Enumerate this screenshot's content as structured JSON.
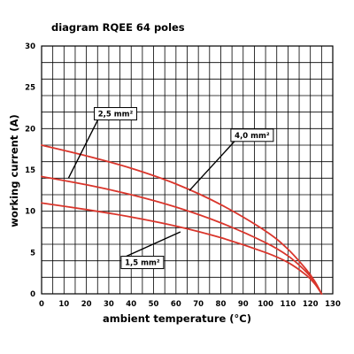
{
  "chart_data": {
    "type": "line",
    "title": "diagram RQEE 64 poles",
    "xlabel": "ambient temperature (°C)",
    "ylabel": "working current (A)",
    "xlim": [
      0,
      130
    ],
    "ylim": [
      0,
      30
    ],
    "x_ticks": [
      0,
      10,
      20,
      30,
      40,
      50,
      60,
      70,
      80,
      90,
      100,
      110,
      120,
      130
    ],
    "y_ticks": [
      0,
      5,
      10,
      15,
      20,
      25,
      30
    ],
    "grid": true,
    "grid_x_step": 5,
    "grid_y_step": 2,
    "line_color": "#d9352b",
    "series": [
      {
        "label": "4,0 mm²",
        "points": [
          [
            0,
            18.0
          ],
          [
            20,
            16.7
          ],
          [
            40,
            15.2
          ],
          [
            60,
            13.3
          ],
          [
            80,
            10.8
          ],
          [
            100,
            7.6
          ],
          [
            110,
            5.4
          ],
          [
            118,
            3.0
          ],
          [
            122,
            1.5
          ],
          [
            125,
            0.0
          ]
        ]
      },
      {
        "label": "2,5 mm²",
        "points": [
          [
            0,
            14.2
          ],
          [
            20,
            13.2
          ],
          [
            40,
            12.0
          ],
          [
            60,
            10.5
          ],
          [
            80,
            8.6
          ],
          [
            100,
            6.2
          ],
          [
            110,
            4.6
          ],
          [
            118,
            2.7
          ],
          [
            122,
            1.4
          ],
          [
            125,
            0.0
          ]
        ]
      },
      {
        "label": "1,5 mm²",
        "points": [
          [
            0,
            11.0
          ],
          [
            20,
            10.2
          ],
          [
            40,
            9.3
          ],
          [
            60,
            8.2
          ],
          [
            80,
            6.8
          ],
          [
            100,
            5.0
          ],
          [
            110,
            3.8
          ],
          [
            118,
            2.3
          ],
          [
            122,
            1.2
          ],
          [
            125,
            0.0
          ]
        ]
      }
    ],
    "annotations": [
      {
        "text": "2,5 mm²",
        "series_index": 1,
        "box_at": [
          33,
          21.8
        ],
        "points_to": [
          12,
          14.0
        ]
      },
      {
        "text": "4,0 mm²",
        "series_index": 0,
        "box_at": [
          94,
          19.2
        ],
        "points_to": [
          66,
          12.5
        ]
      },
      {
        "text": "1,5 mm²",
        "series_index": 2,
        "box_at": [
          45,
          3.8
        ],
        "points_to": [
          62,
          7.5
        ]
      }
    ]
  }
}
